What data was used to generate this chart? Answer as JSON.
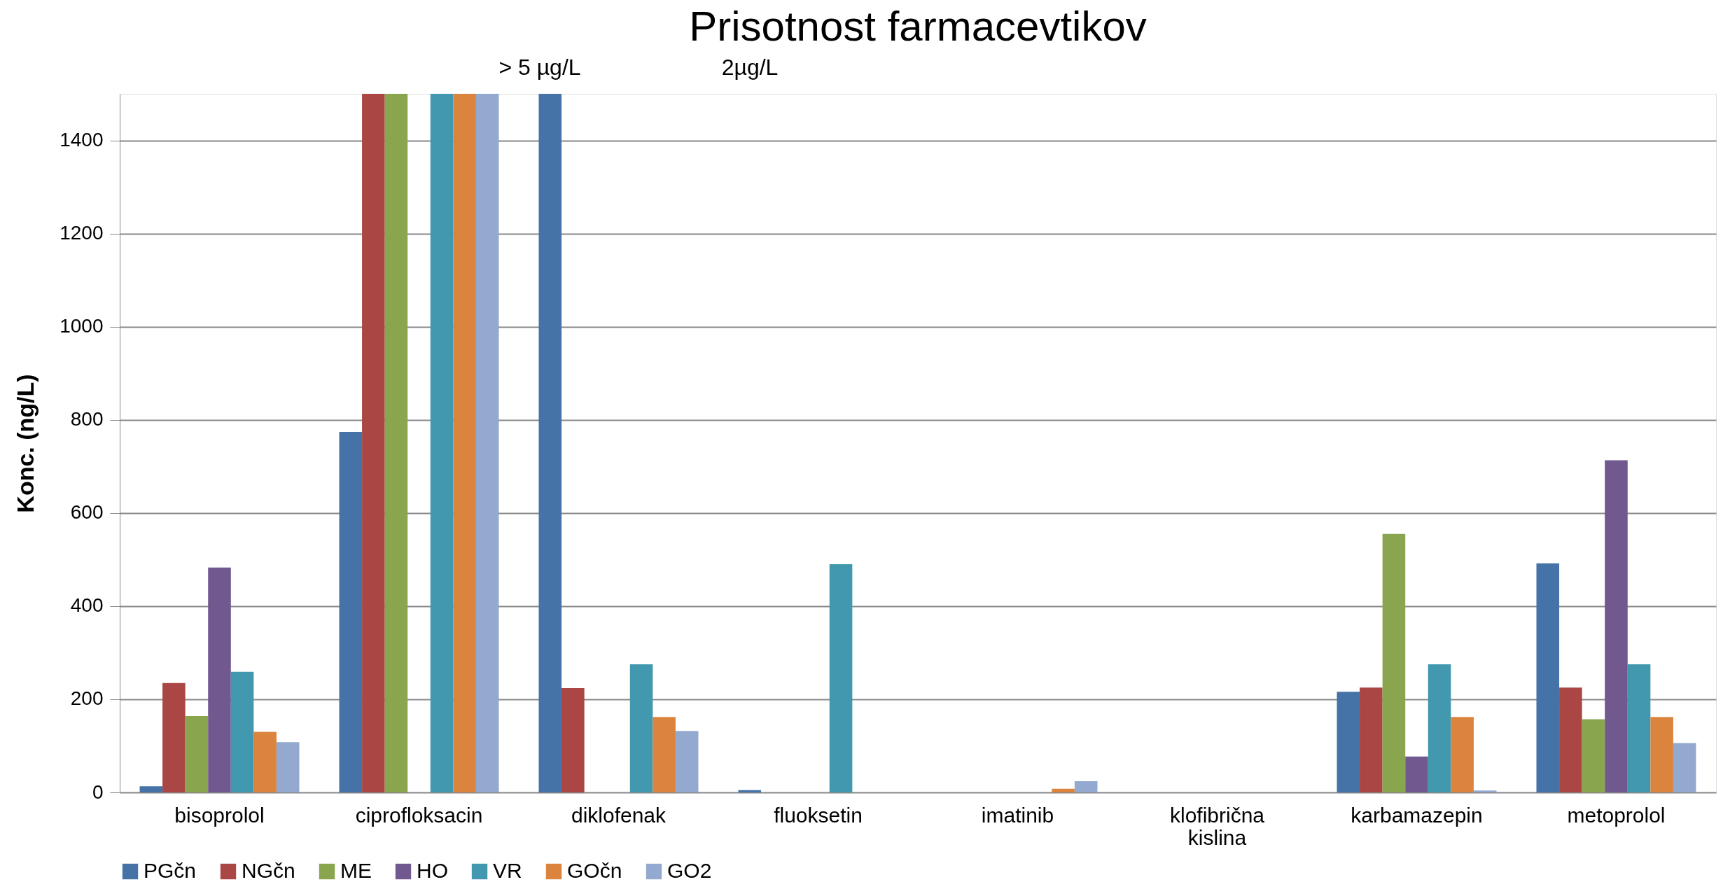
{
  "chart_data": {
    "type": "bar",
    "title": "Prisotnost farmacevtikov",
    "ylabel": "Konc. (ng/L)",
    "categories": [
      "bisoprolol",
      "ciprofloksacin",
      "diklofenak",
      "fluoksetin",
      "imatinib",
      "klofibrična kislina",
      "karbamazepin",
      "metoprolol"
    ],
    "series": [
      {
        "name": "PGčn",
        "color": "#4572a7",
        "values": [
          13,
          774,
          1500,
          5,
          null,
          null,
          216,
          492
        ]
      },
      {
        "name": "NGčn",
        "color": "#aa4643",
        "values": [
          235,
          1500,
          224,
          null,
          null,
          null,
          225,
          225
        ]
      },
      {
        "name": "ME",
        "color": "#89a54e",
        "values": [
          164,
          1500,
          null,
          null,
          null,
          null,
          555,
          157
        ]
      },
      {
        "name": "HO",
        "color": "#71588f",
        "values": [
          483,
          null,
          null,
          null,
          null,
          null,
          77,
          713
        ]
      },
      {
        "name": "VR",
        "color": "#4198af",
        "values": [
          259,
          1500,
          275,
          490,
          null,
          null,
          275,
          275
        ]
      },
      {
        "name": "GOčn",
        "color": "#db843d",
        "values": [
          130,
          1500,
          162,
          null,
          8,
          null,
          162,
          162
        ]
      },
      {
        "name": "GO2",
        "color": "#93a9cf",
        "values": [
          108,
          1500,
          132,
          null,
          24,
          null,
          4,
          106
        ]
      }
    ],
    "ylim": [
      0,
      1500
    ],
    "yticks": [
      0,
      200,
      400,
      600,
      800,
      1000,
      1200,
      1400
    ],
    "grid": "y",
    "legend": "bottom",
    "annotations": [
      "> 5 µg/L",
      "2µg/L"
    ]
  }
}
